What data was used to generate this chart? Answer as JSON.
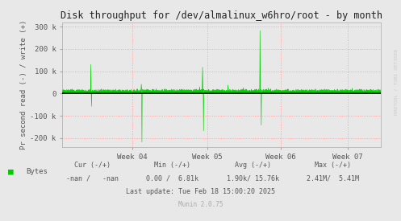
{
  "title": "Disk throughput for /dev/almalinux_w6hro/root - by month",
  "ylabel": "Pr second read (-) / write (+)",
  "background_color": "#E8E8E8",
  "plot_bg_color": "#E8E8E8",
  "grid_color_h": "#FF9999",
  "grid_color_v": "#FF9999",
  "line_color": "#00CC00",
  "zero_line_color": "#000000",
  "border_color": "#AAAAAA",
  "yticks": [
    -200000,
    -100000,
    0,
    100000,
    200000,
    300000
  ],
  "ytick_labels": [
    "-200 k",
    "-100 k",
    "0",
    "100 k",
    "200 k",
    "300 k"
  ],
  "ylim": [
    -240000,
    320000
  ],
  "xtick_labels": [
    "Week 04",
    "Week 05",
    "Week 06",
    "Week 07"
  ],
  "xtick_positions": [
    0.22,
    0.455,
    0.685,
    0.895
  ],
  "legend_label": "Bytes",
  "legend_color": "#00CC00",
  "rrdtool_label": "RRDTOOL / TOBI OETIKER",
  "text_color": "#555555",
  "munin_color": "#AAAAAA",
  "footer_cols": [
    {
      "header": "Cur (-/+)",
      "value": "-nan /   -nan"
    },
    {
      "header": "Min (-/+)",
      "value": "0.00 /  6.81k"
    },
    {
      "header": "Avg (-/+)",
      "value": "1.90k/ 15.76k"
    },
    {
      "header": "Max (-/+)",
      "value": "2.41M/  5.41M"
    }
  ],
  "footer_last_update": "Last update: Tue Feb 18 15:00:20 2025",
  "munin_label": "Munin 2.0.75"
}
